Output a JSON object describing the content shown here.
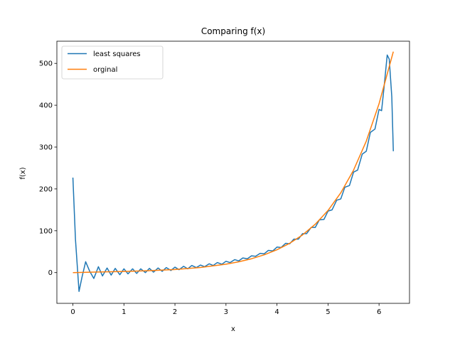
{
  "chart_data": {
    "type": "line",
    "title": "Comparing f(x)",
    "xlabel": "x",
    "ylabel": "f(x)",
    "xlim": [
      -0.314,
      6.597
    ],
    "ylim": [
      -73.5,
      553
    ],
    "xticks": [
      0,
      1,
      2,
      3,
      4,
      5,
      6
    ],
    "yticks": [
      0,
      100,
      200,
      300,
      400,
      500
    ],
    "grid": false,
    "legend_position": "upper-left",
    "series": [
      {
        "name": "least squares",
        "color": "#1f77b4",
        "x": [
          0,
          0.05,
          0.12,
          0.18,
          0.25,
          0.33,
          0.41,
          0.5,
          0.58,
          0.67,
          0.75,
          0.83,
          0.92,
          1.0,
          1.08,
          1.17,
          1.25,
          1.33,
          1.42,
          1.5,
          1.58,
          1.67,
          1.75,
          1.83,
          1.92,
          2.0,
          2.08,
          2.17,
          2.25,
          2.33,
          2.42,
          2.5,
          2.58,
          2.67,
          2.75,
          2.83,
          2.92,
          3.0,
          3.08,
          3.17,
          3.25,
          3.33,
          3.42,
          3.5,
          3.58,
          3.67,
          3.75,
          3.83,
          3.92,
          4.0,
          4.08,
          4.17,
          4.25,
          4.33,
          4.42,
          4.5,
          4.58,
          4.67,
          4.75,
          4.83,
          4.92,
          5.0,
          5.08,
          5.17,
          5.25,
          5.33,
          5.42,
          5.5,
          5.58,
          5.67,
          5.75,
          5.83,
          5.92,
          6.0,
          6.05,
          6.1,
          6.16,
          6.2,
          6.25,
          6.28
        ],
        "y": [
          227,
          80,
          -45,
          -10,
          26,
          3,
          -14,
          14,
          -8,
          11,
          -6,
          10,
          -5,
          9,
          -3,
          9,
          -2,
          9,
          0,
          10,
          1,
          11,
          3,
          12,
          5,
          13,
          7,
          15,
          9,
          17,
          12,
          18,
          14,
          21,
          17,
          24,
          20,
          27,
          24,
          31,
          28,
          35,
          33,
          40,
          39,
          46,
          45,
          53,
          52,
          61,
          60,
          70,
          69,
          80,
          80,
          93,
          93,
          108,
          108,
          126,
          127,
          147,
          150,
          173,
          176,
          204,
          208,
          240,
          245,
          283,
          290,
          335,
          343,
          390,
          387,
          445,
          520,
          510,
          420,
          290
        ]
      },
      {
        "name": "orginal",
        "color": "#ff7f0e",
        "x": [
          0,
          0.5,
          1.0,
          1.5,
          2.0,
          2.5,
          3.0,
          3.25,
          3.5,
          3.75,
          4.0,
          4.25,
          4.5,
          4.75,
          5.0,
          5.25,
          5.5,
          5.75,
          6.0,
          6.28
        ],
        "y": [
          0,
          1.5,
          2.7,
          4.5,
          7.4,
          12.2,
          20.1,
          25.8,
          33.1,
          42.5,
          54.6,
          70.1,
          90.0,
          115.6,
          148.4,
          190.6,
          244.7,
          314.2,
          403.4,
          528
        ]
      }
    ]
  }
}
